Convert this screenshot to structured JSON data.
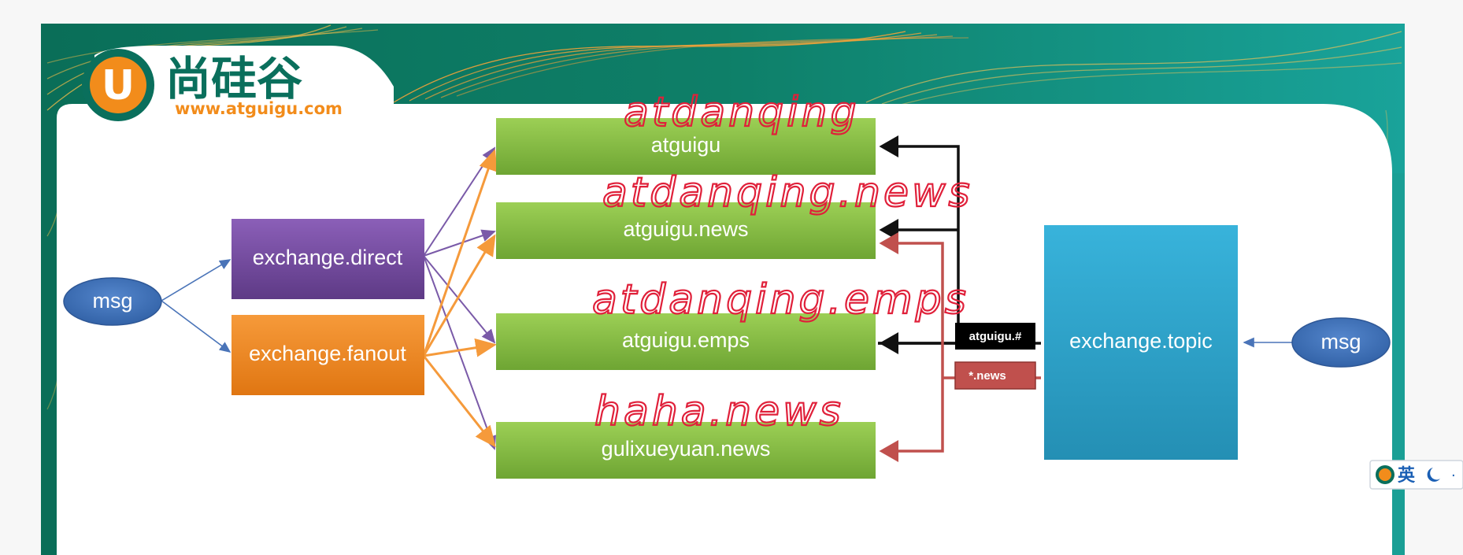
{
  "logo": {
    "cn_text": "尚硅谷",
    "url_text": "www.atguigu.com",
    "badge_letter": "U"
  },
  "diagram": {
    "msg_left": "msg",
    "msg_right": "msg",
    "exchange_direct": "exchange.direct",
    "exchange_fanout": "exchange.fanout",
    "exchange_topic": "exchange.topic",
    "queues": [
      "atguigu",
      "atguigu.news",
      "atguigu.emps",
      "gulixueyuan.news"
    ],
    "binding_keys": [
      "atguigu.#",
      "*.news"
    ]
  },
  "annotations": [
    "atdanqing",
    "atdanqing.news",
    "atdanqing.emps",
    "haha.news"
  ],
  "ime_indicator": {
    "label": "英"
  },
  "colors": {
    "teal_bg": "#0b7a63",
    "direct": "#7a4fa3",
    "fanout": "#f08a24",
    "queue": "#7cb342",
    "topic": "#2ea9cf",
    "msg": "#3d6fb5",
    "handwriting": "#e0203a",
    "binding_black": "#111111",
    "binding_red": "#c0504d"
  }
}
